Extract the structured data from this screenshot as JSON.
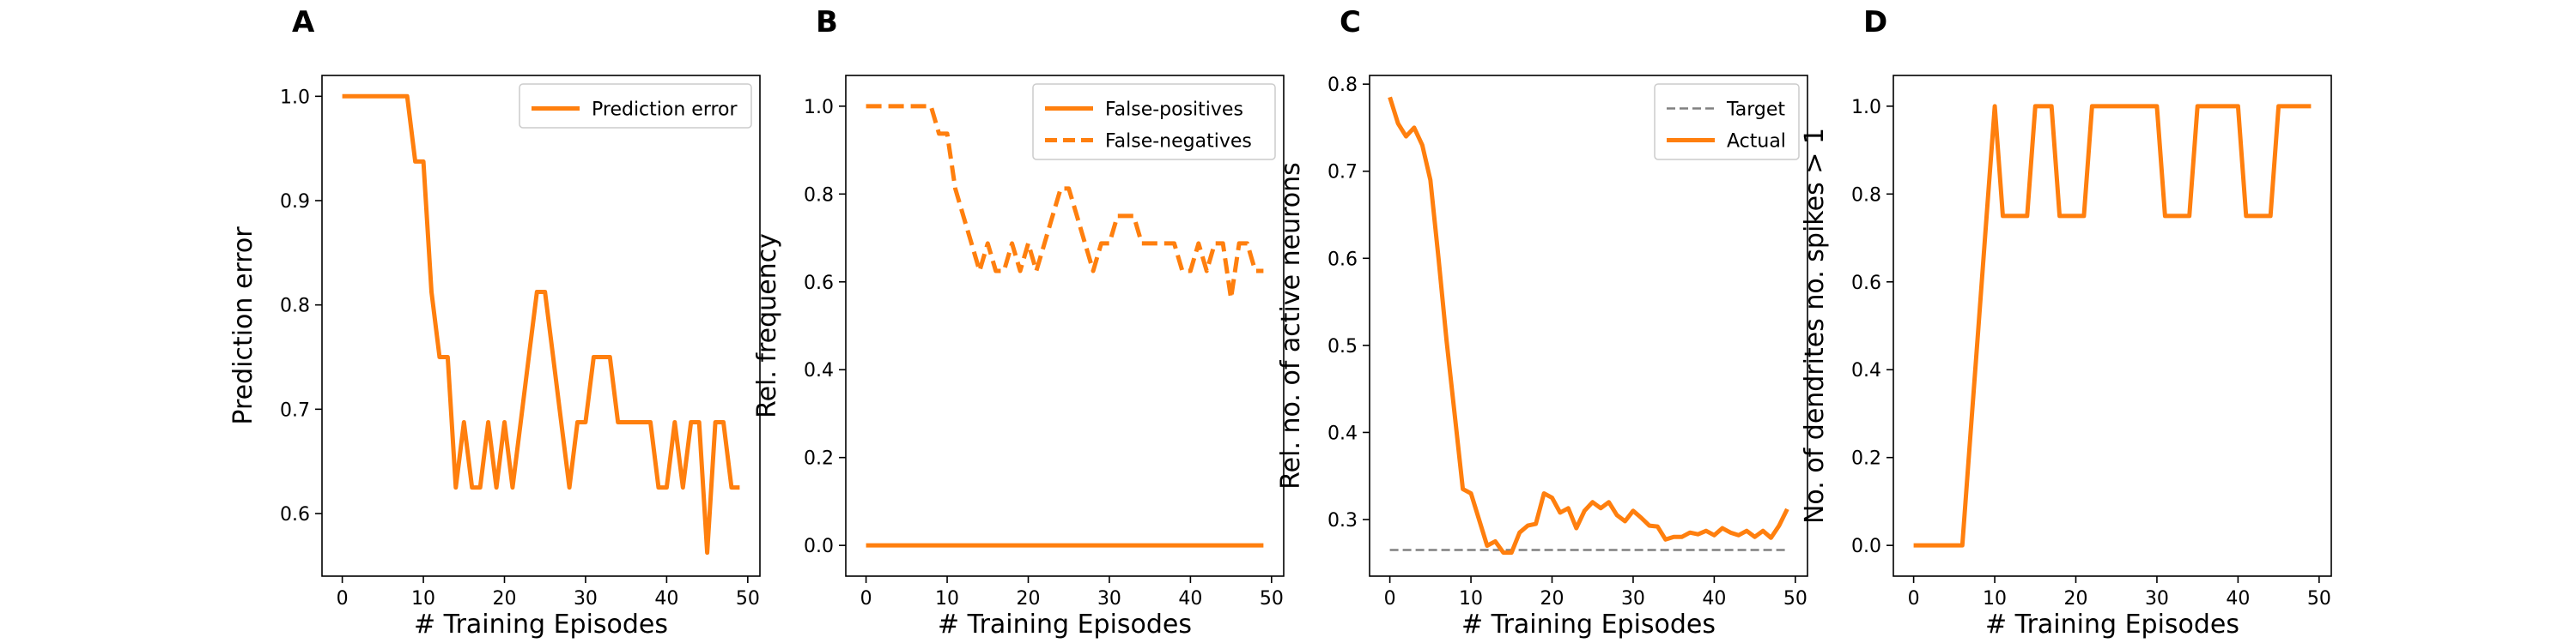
{
  "chart_data": [
    {
      "panel": "A",
      "type": "line",
      "xlabel": "# Training Episodes",
      "ylabel": "Prediction error",
      "xlim": [
        -2.5,
        51.5
      ],
      "ylim": [
        0.54,
        1.02
      ],
      "xticks": [
        0,
        10,
        20,
        30,
        40,
        50
      ],
      "xtick_labels": [
        "0",
        "10",
        "20",
        "30",
        "40",
        "50"
      ],
      "yticks": [
        0.6,
        0.7,
        0.8,
        0.9,
        1.0
      ],
      "ytick_labels": [
        "0.6",
        "0.7",
        "0.8",
        "0.9",
        "1.0"
      ],
      "legend_position": "top-right",
      "grid": false,
      "series": [
        {
          "name": "Prediction error",
          "color": "#ff7f0e",
          "dash": "solid",
          "x": [
            0,
            1,
            2,
            3,
            4,
            5,
            6,
            7,
            8,
            9,
            10,
            11,
            12,
            13,
            14,
            15,
            16,
            17,
            18,
            19,
            20,
            21,
            22,
            23,
            24,
            25,
            26,
            27,
            28,
            29,
            30,
            31,
            32,
            33,
            34,
            35,
            36,
            37,
            38,
            39,
            40,
            41,
            42,
            43,
            44,
            45,
            46,
            47,
            48,
            49
          ],
          "y": [
            1.0,
            1.0,
            1.0,
            1.0,
            1.0,
            1.0,
            1.0,
            1.0,
            1.0,
            0.9375,
            0.9375,
            0.8125,
            0.75,
            0.75,
            0.625,
            0.6875,
            0.625,
            0.625,
            0.6875,
            0.625,
            0.6875,
            0.625,
            0.6875,
            0.75,
            0.8125,
            0.8125,
            0.75,
            0.6875,
            0.625,
            0.6875,
            0.6875,
            0.75,
            0.75,
            0.75,
            0.6875,
            0.6875,
            0.6875,
            0.6875,
            0.6875,
            0.625,
            0.625,
            0.6875,
            0.625,
            0.6875,
            0.6875,
            0.5625,
            0.6875,
            0.6875,
            0.625,
            0.625
          ]
        }
      ]
    },
    {
      "panel": "B",
      "type": "line",
      "xlabel": "# Training Episodes",
      "ylabel": "Rel. frequency",
      "xlim": [
        -2.5,
        51.5
      ],
      "ylim": [
        -0.07,
        1.07
      ],
      "xticks": [
        0,
        10,
        20,
        30,
        40,
        50
      ],
      "xtick_labels": [
        "0",
        "10",
        "20",
        "30",
        "40",
        "50"
      ],
      "yticks": [
        0.0,
        0.2,
        0.4,
        0.6,
        0.8,
        1.0
      ],
      "ytick_labels": [
        "0.0",
        "0.2",
        "0.4",
        "0.6",
        "0.8",
        "1.0"
      ],
      "legend_position": "top-right",
      "grid": false,
      "series": [
        {
          "name": "False-positives",
          "color": "#ff7f0e",
          "dash": "solid",
          "x": [
            0,
            1,
            2,
            3,
            4,
            5,
            6,
            7,
            8,
            9,
            10,
            11,
            12,
            13,
            14,
            15,
            16,
            17,
            18,
            19,
            20,
            21,
            22,
            23,
            24,
            25,
            26,
            27,
            28,
            29,
            30,
            31,
            32,
            33,
            34,
            35,
            36,
            37,
            38,
            39,
            40,
            41,
            42,
            43,
            44,
            45,
            46,
            47,
            48,
            49
          ],
          "y": [
            0,
            0,
            0,
            0,
            0,
            0,
            0,
            0,
            0,
            0,
            0,
            0,
            0,
            0,
            0,
            0,
            0,
            0,
            0,
            0,
            0,
            0,
            0,
            0,
            0,
            0,
            0,
            0,
            0,
            0,
            0,
            0,
            0,
            0,
            0,
            0,
            0,
            0,
            0,
            0,
            0,
            0,
            0,
            0,
            0,
            0,
            0,
            0,
            0,
            0
          ]
        },
        {
          "name": "False-negatives",
          "color": "#ff7f0e",
          "dash": "dashed",
          "x": [
            0,
            1,
            2,
            3,
            4,
            5,
            6,
            7,
            8,
            9,
            10,
            11,
            12,
            13,
            14,
            15,
            16,
            17,
            18,
            19,
            20,
            21,
            22,
            23,
            24,
            25,
            26,
            27,
            28,
            29,
            30,
            31,
            32,
            33,
            34,
            35,
            36,
            37,
            38,
            39,
            40,
            41,
            42,
            43,
            44,
            45,
            46,
            47,
            48,
            49
          ],
          "y": [
            1.0,
            1.0,
            1.0,
            1.0,
            1.0,
            1.0,
            1.0,
            1.0,
            1.0,
            0.9375,
            0.9375,
            0.8125,
            0.75,
            0.6875,
            0.625,
            0.6875,
            0.625,
            0.625,
            0.6875,
            0.625,
            0.6875,
            0.625,
            0.6875,
            0.75,
            0.8125,
            0.8125,
            0.75,
            0.6875,
            0.625,
            0.6875,
            0.6875,
            0.75,
            0.75,
            0.75,
            0.6875,
            0.6875,
            0.6875,
            0.6875,
            0.6875,
            0.625,
            0.625,
            0.6875,
            0.625,
            0.6875,
            0.6875,
            0.5625,
            0.6875,
            0.6875,
            0.625,
            0.625
          ]
        }
      ]
    },
    {
      "panel": "C",
      "type": "line",
      "xlabel": "# Training Episodes",
      "ylabel": "Rel. no. of active neurons",
      "xlim": [
        -2.5,
        51.5
      ],
      "ylim": [
        0.235,
        0.81
      ],
      "xticks": [
        0,
        10,
        20,
        30,
        40,
        50
      ],
      "xtick_labels": [
        "0",
        "10",
        "20",
        "30",
        "40",
        "50"
      ],
      "yticks": [
        0.3,
        0.4,
        0.5,
        0.6,
        0.7,
        0.8
      ],
      "ytick_labels": [
        "0.3",
        "0.4",
        "0.5",
        "0.6",
        "0.7",
        "0.8"
      ],
      "legend_position": "top-right",
      "grid": false,
      "series": [
        {
          "name": "Target",
          "color": "#808080",
          "dash": "dashed",
          "x": [
            0,
            49
          ],
          "y": [
            0.265,
            0.265
          ]
        },
        {
          "name": "Actual",
          "color": "#ff7f0e",
          "dash": "solid",
          "x": [
            0,
            1,
            2,
            3,
            4,
            5,
            6,
            7,
            8,
            9,
            10,
            11,
            12,
            13,
            14,
            15,
            16,
            17,
            18,
            19,
            20,
            21,
            22,
            23,
            24,
            25,
            26,
            27,
            28,
            29,
            30,
            31,
            32,
            33,
            34,
            35,
            36,
            37,
            38,
            39,
            40,
            41,
            42,
            43,
            44,
            45,
            46,
            47,
            48,
            49
          ],
          "y": [
            0.785,
            0.755,
            0.74,
            0.75,
            0.73,
            0.69,
            0.6,
            0.505,
            0.42,
            0.335,
            0.33,
            0.3,
            0.27,
            0.275,
            0.262,
            0.262,
            0.285,
            0.293,
            0.295,
            0.33,
            0.325,
            0.308,
            0.313,
            0.29,
            0.31,
            0.32,
            0.313,
            0.32,
            0.305,
            0.298,
            0.31,
            0.302,
            0.293,
            0.292,
            0.277,
            0.28,
            0.28,
            0.285,
            0.283,
            0.287,
            0.282,
            0.29,
            0.285,
            0.282,
            0.287,
            0.28,
            0.287,
            0.279,
            0.293,
            0.312
          ]
        }
      ]
    },
    {
      "panel": "D",
      "type": "line",
      "xlabel": "# Training Episodes",
      "ylabel": "No. of dendrites no. spikes > 1",
      "xlim": [
        -2.5,
        51.5
      ],
      "ylim": [
        -0.07,
        1.07
      ],
      "xticks": [
        0,
        10,
        20,
        30,
        40,
        50
      ],
      "xtick_labels": [
        "0",
        "10",
        "20",
        "30",
        "40",
        "50"
      ],
      "yticks": [
        0.0,
        0.2,
        0.4,
        0.6,
        0.8,
        1.0
      ],
      "ytick_labels": [
        "0.0",
        "0.2",
        "0.4",
        "0.6",
        "0.8",
        "1.0"
      ],
      "legend_position": "none",
      "grid": false,
      "series": [
        {
          "color": "#ff7f0e",
          "dash": "solid",
          "x": [
            0,
            1,
            2,
            3,
            4,
            5,
            6,
            7,
            8,
            9,
            10,
            11,
            12,
            13,
            14,
            15,
            16,
            17,
            18,
            19,
            20,
            21,
            22,
            23,
            24,
            25,
            26,
            27,
            28,
            29,
            30,
            31,
            32,
            33,
            34,
            35,
            36,
            37,
            38,
            39,
            40,
            41,
            42,
            43,
            44,
            45,
            46,
            47,
            48,
            49
          ],
          "y": [
            0,
            0,
            0,
            0,
            0,
            0,
            0,
            0.25,
            0.5,
            0.75,
            1.0,
            0.75,
            0.75,
            0.75,
            0.75,
            1.0,
            1.0,
            1.0,
            0.75,
            0.75,
            0.75,
            0.75,
            1.0,
            1.0,
            1.0,
            1.0,
            1.0,
            1.0,
            1.0,
            1.0,
            1.0,
            0.75,
            0.75,
            0.75,
            0.75,
            1.0,
            1.0,
            1.0,
            1.0,
            1.0,
            1.0,
            0.75,
            0.75,
            0.75,
            0.75,
            1.0,
            1.0,
            1.0,
            1.0,
            1.0
          ]
        }
      ]
    }
  ]
}
